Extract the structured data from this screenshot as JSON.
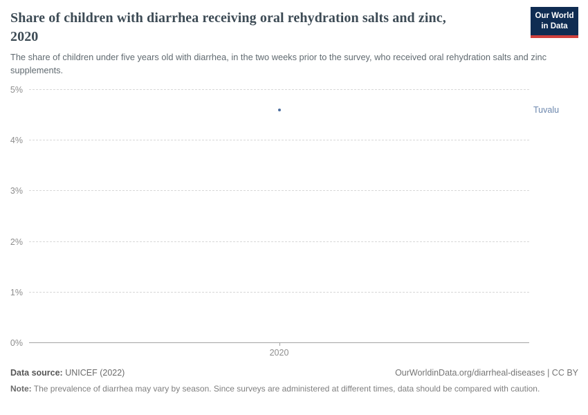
{
  "header": {
    "title": "Share of children with diarrhea receiving oral rehydration salts and zinc, 2020",
    "subtitle": "The share of children under five years old with diarrhea, in the two weeks prior to the survey, who received oral rehydration salts and zinc supplements.",
    "logo": {
      "line1": "Our World",
      "line2": "in Data",
      "bg_color": "#0f2c52",
      "accent_color": "#d0403d"
    }
  },
  "chart_data": {
    "type": "scatter",
    "title": "Share of children with diarrhea receiving oral rehydration salts and zinc, 2020",
    "x": [
      2020
    ],
    "series": [
      {
        "name": "Tuvalu",
        "values": [
          4.6
        ]
      }
    ],
    "xlabel": "",
    "ylabel": "",
    "xlim": [
      2019.5,
      2020.5
    ],
    "ylim": [
      0,
      5
    ],
    "yticks": [
      0,
      1,
      2,
      3,
      4,
      5
    ],
    "ytick_suffix": "%",
    "xticks": [
      "2020"
    ],
    "grid": "horizontal-dashed",
    "legend_position": "label-right-of-plot",
    "point_color": "#4d6e9f",
    "entity_label_color": "#6c87ad"
  },
  "footer": {
    "datasource_label": "Data source:",
    "datasource_value": " UNICEF (2022)",
    "license": "OurWorldinData.org/diarrheal-diseases | CC BY",
    "note_label": "Note:",
    "note_text": " The prevalence of diarrhea may vary by season. Since surveys are administered at different times, data should be compared with caution."
  }
}
